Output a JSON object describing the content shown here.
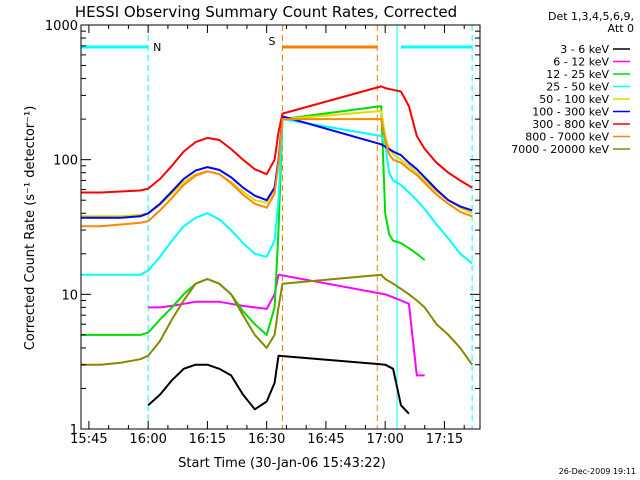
{
  "chart_data": {
    "type": "line",
    "title": "HESSI Observing Summary Count Rates, Corrected",
    "xlabel": "Start Time (30-Jan-06 15:43:22)",
    "ylabel": "Corrected Count Rate (s⁻¹ detector⁻¹)",
    "yscale": "log",
    "xlim": [
      "15:43",
      "17:24"
    ],
    "ylim": [
      1,
      1000
    ],
    "x_ticks": [
      "15:45",
      "16:00",
      "16:15",
      "16:30",
      "16:45",
      "17:00",
      "17:15"
    ],
    "y_ticks": [
      "1",
      "10",
      "100",
      "1000"
    ],
    "legend_header": [
      "Det 1,3,4,5,6,9,",
      "Att 0"
    ],
    "legend_position": "right, outside plot",
    "footer": "26-Dec-2009 19:11",
    "markers": {
      "night": {
        "label": "N",
        "color": "#00ffff",
        "bars": [
          [
            "15:43",
            "16:00"
          ],
          [
            "17:04",
            "17:22"
          ]
        ],
        "lines": [
          "16:00",
          "17:22"
        ]
      },
      "saa": {
        "label": "S",
        "color": "#ff7f00",
        "bars": [
          [
            "16:34",
            "16:58"
          ]
        ],
        "lines": [
          "16:34",
          "16:58"
        ]
      },
      "flare_line": {
        "color": "#00ffff",
        "time": "17:03"
      }
    },
    "series": [
      {
        "name": "3 - 6 keV",
        "color": "#000000",
        "x": [
          "16:00",
          "16:03",
          "16:06",
          "16:09",
          "16:12",
          "16:15",
          "16:18",
          "16:21",
          "16:24",
          "16:27",
          "16:30",
          "16:32",
          "16:33",
          "17:00",
          "17:02",
          "17:04",
          "17:06"
        ],
        "y": [
          1.5,
          1.8,
          2.3,
          2.8,
          3.0,
          3.0,
          2.8,
          2.5,
          1.8,
          1.4,
          1.6,
          2.2,
          3.5,
          3.0,
          2.8,
          1.5,
          1.3
        ]
      },
      {
        "name": "6 - 12 keV",
        "color": "#ff00ff",
        "x": [
          "16:00",
          "16:03",
          "16:06",
          "16:09",
          "16:12",
          "16:15",
          "16:18",
          "16:21",
          "16:24",
          "16:27",
          "16:30",
          "16:32",
          "16:33",
          "17:00",
          "17:02",
          "17:04",
          "17:06",
          "17:08",
          "17:10"
        ],
        "y": [
          8.0,
          8.0,
          8.2,
          8.5,
          8.8,
          8.8,
          8.8,
          8.5,
          8.2,
          8.0,
          7.8,
          10,
          14,
          10,
          9.5,
          9,
          8.5,
          2.5,
          2.5
        ]
      },
      {
        "name": "12 - 25 keV",
        "color": "#00dd00",
        "x": [
          "15:43",
          "15:48",
          "15:53",
          "15:58",
          "16:00",
          "16:03",
          "16:06",
          "16:09",
          "16:12",
          "16:15",
          "16:18",
          "16:21",
          "16:24",
          "16:27",
          "16:30",
          "16:32",
          "16:33",
          "16:34",
          "16:59",
          "17:00",
          "17:01",
          "17:02",
          "17:04",
          "17:06",
          "17:08",
          "17:10"
        ],
        "y": [
          5.0,
          5.0,
          5.0,
          5.0,
          5.2,
          6.5,
          8.0,
          10,
          12,
          13,
          12,
          10,
          7.5,
          6.0,
          5.0,
          8,
          30,
          200,
          250,
          40,
          28,
          25,
          24,
          22,
          20,
          18
        ]
      },
      {
        "name": "25 - 50 keV",
        "color": "#00ffff",
        "x": [
          "15:43",
          "15:48",
          "15:53",
          "15:58",
          "16:00",
          "16:03",
          "16:06",
          "16:09",
          "16:12",
          "16:15",
          "16:18",
          "16:21",
          "16:24",
          "16:27",
          "16:30",
          "16:32",
          "16:33",
          "16:34",
          "16:59",
          "17:00",
          "17:01",
          "17:02",
          "17:04",
          "17:06",
          "17:08",
          "17:10",
          "17:13",
          "17:16",
          "17:19",
          "17:22"
        ],
        "y": [
          14,
          14,
          14,
          14,
          15,
          19,
          25,
          32,
          37,
          40,
          36,
          30,
          24,
          20,
          19,
          25,
          50,
          200,
          150,
          130,
          80,
          70,
          65,
          57,
          50,
          43,
          33,
          26,
          20,
          17
        ]
      },
      {
        "name": "50 - 100 keV",
        "color": "#dddd00",
        "x": [
          "15:43",
          "15:48",
          "15:53",
          "15:58",
          "16:00",
          "16:03",
          "16:06",
          "16:09",
          "16:12",
          "16:15",
          "16:18",
          "16:21",
          "16:24",
          "16:27",
          "16:30",
          "16:32",
          "16:33",
          "16:34",
          "16:59",
          "17:00",
          "17:01",
          "17:02",
          "17:04",
          "17:06",
          "17:08",
          "17:10",
          "17:13",
          "17:16",
          "17:19",
          "17:22"
        ],
        "y": [
          38,
          38,
          38,
          39,
          40,
          46,
          56,
          68,
          78,
          82,
          78,
          68,
          58,
          50,
          48,
          60,
          100,
          200,
          230,
          150,
          120,
          110,
          100,
          90,
          80,
          70,
          58,
          50,
          44,
          40
        ]
      },
      {
        "name": "100 - 300 keV",
        "color": "#0000ff",
        "x": [
          "15:43",
          "15:48",
          "15:53",
          "15:58",
          "16:00",
          "16:03",
          "16:06",
          "16:09",
          "16:12",
          "16:15",
          "16:18",
          "16:21",
          "16:24",
          "16:27",
          "16:30",
          "16:32",
          "16:33",
          "16:34",
          "16:59",
          "17:00",
          "17:01",
          "17:02",
          "17:04",
          "17:06",
          "17:08",
          "17:10",
          "17:13",
          "17:16",
          "17:19",
          "17:22"
        ],
        "y": [
          37,
          37,
          37,
          38,
          40,
          47,
          58,
          72,
          83,
          88,
          84,
          74,
          62,
          54,
          50,
          62,
          100,
          210,
          130,
          125,
          120,
          115,
          108,
          95,
          85,
          74,
          60,
          50,
          45,
          42
        ]
      },
      {
        "name": "300 - 800 keV",
        "color": "#ff0000",
        "x": [
          "15:43",
          "15:48",
          "15:53",
          "15:58",
          "16:00",
          "16:03",
          "16:06",
          "16:09",
          "16:12",
          "16:15",
          "16:18",
          "16:21",
          "16:24",
          "16:27",
          "16:30",
          "16:32",
          "16:33",
          "16:34",
          "16:59",
          "17:00",
          "17:01",
          "17:02",
          "17:04",
          "17:06",
          "17:08",
          "17:10",
          "17:13",
          "17:16",
          "17:19",
          "17:22"
        ],
        "y": [
          57,
          57,
          58,
          59,
          61,
          72,
          90,
          115,
          135,
          145,
          140,
          120,
          100,
          85,
          78,
          100,
          160,
          220,
          350,
          340,
          335,
          330,
          320,
          250,
          150,
          120,
          95,
          80,
          70,
          62
        ]
      },
      {
        "name": "800 - 7000 keV",
        "color": "#ff8800",
        "x": [
          "15:43",
          "15:48",
          "15:53",
          "15:58",
          "16:00",
          "16:03",
          "16:06",
          "16:09",
          "16:12",
          "16:15",
          "16:18",
          "16:21",
          "16:24",
          "16:27",
          "16:30",
          "16:32",
          "16:33",
          "16:34",
          "16:59",
          "17:00",
          "17:01",
          "17:02",
          "17:04",
          "17:06",
          "17:08",
          "17:10",
          "17:13",
          "17:16",
          "17:19",
          "17:22"
        ],
        "y": [
          32,
          32,
          33,
          34,
          35,
          42,
          52,
          65,
          76,
          82,
          78,
          67,
          55,
          47,
          44,
          56,
          95,
          200,
          200,
          140,
          110,
          100,
          95,
          85,
          77,
          67,
          55,
          47,
          41,
          38
        ]
      },
      {
        "name": "7000 - 20000 keV",
        "color": "#888800",
        "x": [
          "15:43",
          "15:48",
          "15:53",
          "15:58",
          "16:00",
          "16:03",
          "16:06",
          "16:09",
          "16:12",
          "16:15",
          "16:18",
          "16:21",
          "16:24",
          "16:27",
          "16:30",
          "16:32",
          "16:33",
          "16:34",
          "16:59",
          "17:00",
          "17:02",
          "17:04",
          "17:06",
          "17:08",
          "17:10",
          "17:13",
          "17:16",
          "17:19",
          "17:22"
        ],
        "y": [
          3.0,
          3.0,
          3.1,
          3.3,
          3.5,
          4.5,
          6.5,
          9.0,
          12,
          13,
          12,
          10,
          7,
          5,
          4,
          5,
          8,
          12,
          14,
          13,
          12,
          11,
          10,
          9,
          8,
          6,
          5,
          4,
          3
        ]
      }
    ]
  }
}
